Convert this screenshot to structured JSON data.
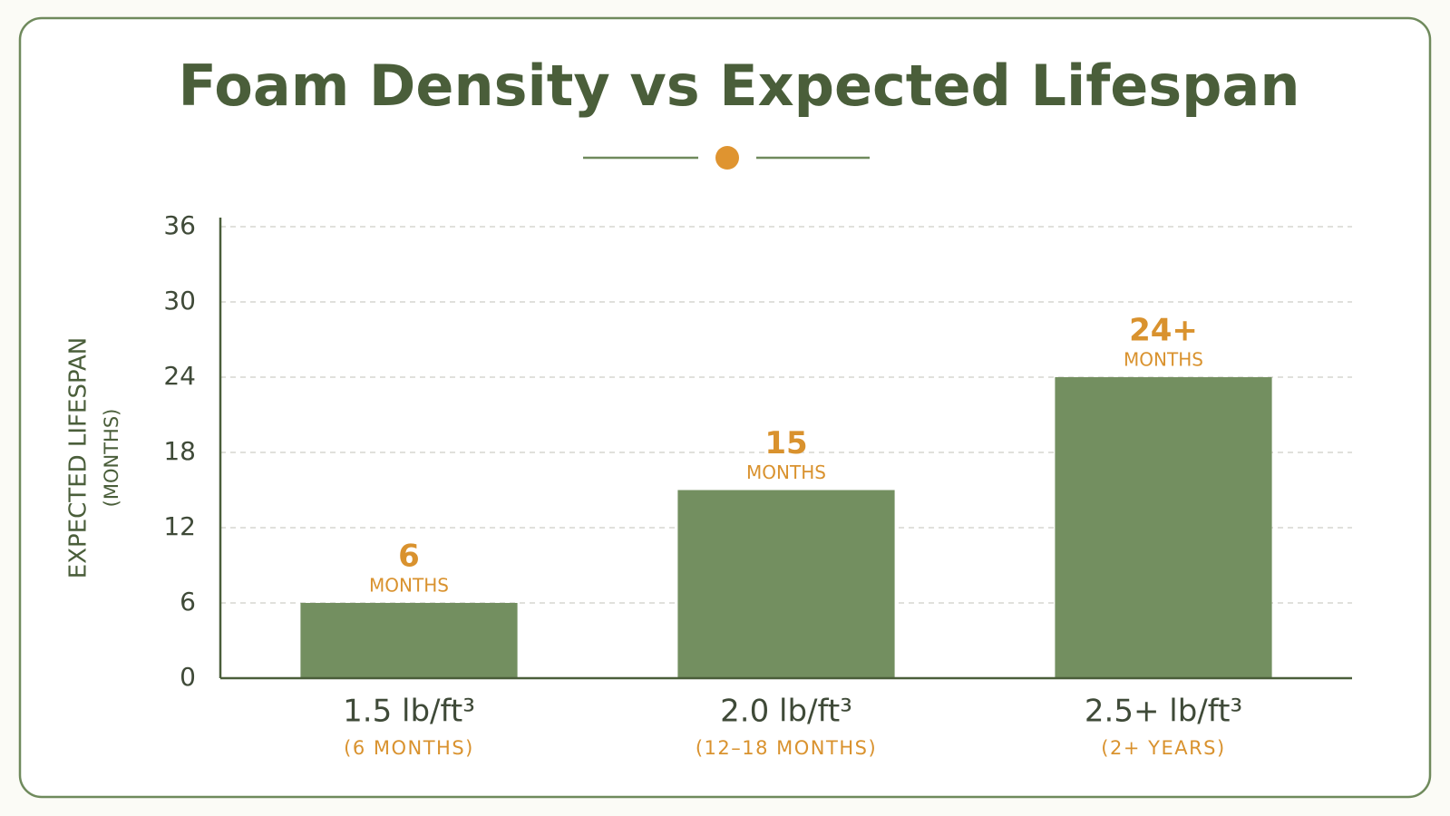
{
  "chart_data": {
    "type": "bar",
    "title": "Foam Density vs Expected Lifespan",
    "categories": [
      "1.5 lb/ft³",
      "2.0 lb/ft³",
      "2.5+ lb/ft³"
    ],
    "category_notes": [
      "(6 MONTHS)",
      "(12–18 MONTHS)",
      "(2+ YEARS)"
    ],
    "values": [
      6,
      15,
      24
    ],
    "value_labels": [
      "6",
      "15",
      "24+"
    ],
    "value_label_unit": "MONTHS",
    "color": "#738f60",
    "y_label": "EXPECTED LIFESPAN",
    "y_label_sub": "(MONTHS)",
    "ylim": [
      0,
      36
    ],
    "yticks": [
      0,
      6,
      12,
      18,
      24,
      30,
      36
    ],
    "grid": true
  }
}
